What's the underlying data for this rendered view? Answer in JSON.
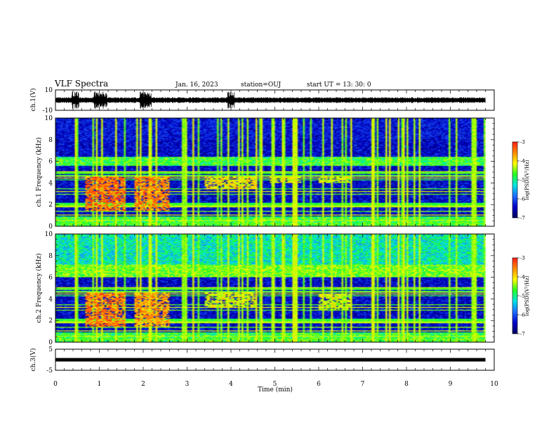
{
  "header": {
    "title": "VLF Spectra",
    "date": "Jan. 16, 2023",
    "station": "station=OUJ",
    "start": "start  UT  =   13: 30: 0"
  },
  "colorbar": {
    "label": "log(PSD)(V²/Hz)",
    "ticks": [
      "-3",
      "-4",
      "-5",
      "-6",
      "-7"
    ],
    "colors": [
      "#ff1a1a",
      "#ff8c00",
      "#ffff00",
      "#22ff22",
      "#00e5e5",
      "#1e6bff",
      "#0000c8",
      "#000060"
    ]
  },
  "chart_data": [
    {
      "type": "line",
      "panel": "ch1-waveform",
      "ylabel": "ch.1(V)",
      "ylim": [
        -10,
        10
      ],
      "y_ticks": [
        "10",
        "-10"
      ],
      "x_range_min": [
        0,
        9.8
      ],
      "bursts_min": [
        0.45,
        0.95,
        1.1,
        2.0,
        2.1,
        4.0
      ]
    },
    {
      "type": "heatmap",
      "panel": "ch1-spectrogram",
      "ylabel": "ch.1 Frequency (kHz)",
      "ylim": [
        0,
        10
      ],
      "y_ticks": [
        "0",
        "2",
        "4",
        "6",
        "8",
        "10"
      ],
      "log_psd_range": [
        -7,
        -3
      ],
      "bands": [
        {
          "f_kHz": [
            5.6,
            6.4
          ],
          "log_psd": -5.0
        },
        {
          "f_kHz": [
            8.0,
            10.0
          ],
          "log_psd": -6.6
        },
        {
          "f_kHz": [
            0.0,
            0.8
          ],
          "log_psd": -5.0
        }
      ],
      "emissions": [
        {
          "t_min": [
            0.7,
            1.6
          ],
          "f_kHz": [
            1.4,
            4.6
          ],
          "log_psd": -3.5
        },
        {
          "t_min": [
            1.8,
            2.6
          ],
          "f_kHz": [
            1.4,
            4.6
          ],
          "log_psd": -3.6
        },
        {
          "t_min": [
            3.4,
            4.6
          ],
          "f_kHz": [
            3.4,
            4.6
          ],
          "log_psd": -4.2
        },
        {
          "t_min": [
            4.9,
            5.6
          ],
          "f_kHz": [
            4.0,
            4.6
          ],
          "log_psd": -4.4
        },
        {
          "t_min": [
            6.0,
            6.7
          ],
          "f_kHz": [
            4.0,
            4.6
          ],
          "log_psd": -4.4
        }
      ]
    },
    {
      "type": "heatmap",
      "panel": "ch2-spectrogram",
      "ylabel": "ch.2 Frequency (kHz)",
      "ylim": [
        0,
        10
      ],
      "y_ticks": [
        "0",
        "2",
        "4",
        "6",
        "8",
        "10"
      ],
      "log_psd_range": [
        -7,
        -3
      ],
      "bands": [
        {
          "f_kHz": [
            6.0,
            7.2
          ],
          "log_psd": -4.8
        },
        {
          "f_kHz": [
            7.2,
            10.0
          ],
          "log_psd": -5.4
        },
        {
          "f_kHz": [
            0.0,
            0.8
          ],
          "log_psd": -5.0
        }
      ],
      "emissions": [
        {
          "t_min": [
            0.7,
            1.6
          ],
          "f_kHz": [
            1.4,
            4.6
          ],
          "log_psd": -3.6
        },
        {
          "t_min": [
            1.8,
            2.6
          ],
          "f_kHz": [
            1.4,
            4.6
          ],
          "log_psd": -3.8
        },
        {
          "t_min": [
            3.4,
            4.6
          ],
          "f_kHz": [
            3.2,
            4.6
          ],
          "log_psd": -4.4
        },
        {
          "t_min": [
            6.0,
            6.7
          ],
          "f_kHz": [
            3.0,
            4.4
          ],
          "log_psd": -4.5
        }
      ]
    },
    {
      "type": "line",
      "panel": "ch3-waveform",
      "ylabel": "ch.3(V)",
      "ylim": [
        -5,
        5
      ],
      "y_ticks": [
        "5",
        "-5"
      ],
      "constant_value_V": 0
    }
  ],
  "xaxis": {
    "label": "Time  (min)",
    "ticks": [
      "0",
      "1",
      "2",
      "3",
      "4",
      "5",
      "6",
      "7",
      "8",
      "9",
      "10"
    ],
    "range": [
      0,
      10
    ],
    "data_end_min": 9.8
  }
}
